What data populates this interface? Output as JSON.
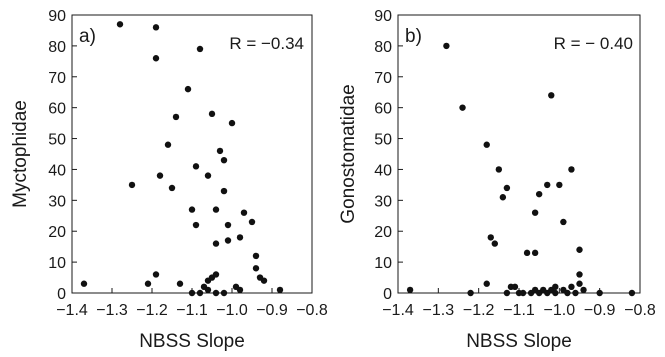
{
  "chart_data": [
    {
      "type": "scatter",
      "panel_label": "a)",
      "annotation": "R = −0.34",
      "xlabel": "NBSS Slope",
      "ylabel": "Myctophidae",
      "xlim": [
        -1.4,
        -0.8
      ],
      "ylim": [
        0,
        90
      ],
      "xticks": [
        -1.4,
        -1.3,
        -1.2,
        -1.1,
        -1.0,
        -0.9,
        -0.8
      ],
      "yticks": [
        0,
        10,
        20,
        30,
        40,
        50,
        60,
        70,
        80,
        90
      ],
      "xtick_labels": [
        "−1.4",
        "−1.3",
        "−1.2",
        "−1.1",
        "−1.0",
        "−0.9",
        "−0.8"
      ],
      "ytick_labels": [
        "0",
        "10",
        "20",
        "30",
        "40",
        "50",
        "60",
        "70",
        "80",
        "90"
      ],
      "grid": false,
      "points": [
        {
          "x": -1.37,
          "y": 3
        },
        {
          "x": -1.28,
          "y": 87
        },
        {
          "x": -1.25,
          "y": 35
        },
        {
          "x": -1.21,
          "y": 3
        },
        {
          "x": -1.19,
          "y": 86
        },
        {
          "x": -1.19,
          "y": 76
        },
        {
          "x": -1.19,
          "y": 6
        },
        {
          "x": -1.18,
          "y": 38
        },
        {
          "x": -1.16,
          "y": 48
        },
        {
          "x": -1.15,
          "y": 34
        },
        {
          "x": -1.14,
          "y": 57
        },
        {
          "x": -1.13,
          "y": 3
        },
        {
          "x": -1.11,
          "y": 66
        },
        {
          "x": -1.1,
          "y": 27
        },
        {
          "x": -1.09,
          "y": 41
        },
        {
          "x": -1.08,
          "y": 79
        },
        {
          "x": -1.09,
          "y": 22
        },
        {
          "x": -1.07,
          "y": 2
        },
        {
          "x": -1.06,
          "y": 38
        },
        {
          "x": -1.05,
          "y": 58
        },
        {
          "x": -1.04,
          "y": 27
        },
        {
          "x": -1.04,
          "y": 16
        },
        {
          "x": -1.03,
          "y": 46
        },
        {
          "x": -1.02,
          "y": 33
        },
        {
          "x": -1.02,
          "y": 43
        },
        {
          "x": -1.01,
          "y": 17
        },
        {
          "x": -1.01,
          "y": 22
        },
        {
          "x": -1.0,
          "y": 55
        },
        {
          "x": -0.98,
          "y": 18
        },
        {
          "x": -0.97,
          "y": 26
        },
        {
          "x": -0.95,
          "y": 23
        },
        {
          "x": -0.94,
          "y": 12
        },
        {
          "x": -0.94,
          "y": 8
        },
        {
          "x": -0.93,
          "y": 5
        },
        {
          "x": -0.92,
          "y": 4
        },
        {
          "x": -0.88,
          "y": 1
        },
        {
          "x": -1.06,
          "y": 4
        },
        {
          "x": -1.05,
          "y": 5
        },
        {
          "x": -1.04,
          "y": 6
        },
        {
          "x": -1.06,
          "y": 1
        },
        {
          "x": -1.04,
          "y": 0
        },
        {
          "x": -1.02,
          "y": 0
        },
        {
          "x": -0.99,
          "y": 2
        },
        {
          "x": -0.98,
          "y": 1
        },
        {
          "x": -1.08,
          "y": 0
        },
        {
          "x": -1.1,
          "y": 0
        }
      ]
    },
    {
      "type": "scatter",
      "panel_label": "b)",
      "annotation": "R = − 0.40",
      "xlabel": "NBSS Slope",
      "ylabel": "Gonostomatidae",
      "xlim": [
        -1.4,
        -0.8
      ],
      "ylim": [
        0,
        90
      ],
      "xticks": [
        -1.4,
        -1.3,
        -1.2,
        -1.1,
        -1.0,
        -0.9,
        -0.8
      ],
      "yticks": [
        0,
        10,
        20,
        30,
        40,
        50,
        60,
        70,
        80,
        90
      ],
      "xtick_labels": [
        "−1.4",
        "−1.3",
        "−1.2",
        "−1.1",
        "−1.0",
        "−0.9",
        "−0.8"
      ],
      "ytick_labels": [
        "0",
        "10",
        "20",
        "30",
        "40",
        "50",
        "60",
        "70",
        "80",
        "90"
      ],
      "grid": false,
      "points": [
        {
          "x": -1.37,
          "y": 1
        },
        {
          "x": -1.28,
          "y": 80
        },
        {
          "x": -1.24,
          "y": 60
        },
        {
          "x": -1.22,
          "y": 0
        },
        {
          "x": -1.18,
          "y": 48
        },
        {
          "x": -1.18,
          "y": 3
        },
        {
          "x": -1.17,
          "y": 18
        },
        {
          "x": -1.16,
          "y": 16
        },
        {
          "x": -1.15,
          "y": 40
        },
        {
          "x": -1.14,
          "y": 31
        },
        {
          "x": -1.13,
          "y": 34
        },
        {
          "x": -1.13,
          "y": 0
        },
        {
          "x": -1.12,
          "y": 2
        },
        {
          "x": -1.11,
          "y": 2
        },
        {
          "x": -1.1,
          "y": 0
        },
        {
          "x": -1.08,
          "y": 13
        },
        {
          "x": -1.06,
          "y": 13
        },
        {
          "x": -1.06,
          "y": 26
        },
        {
          "x": -1.05,
          "y": 32
        },
        {
          "x": -1.03,
          "y": 35
        },
        {
          "x": -1.02,
          "y": 64
        },
        {
          "x": -1.0,
          "y": 35
        },
        {
          "x": -0.99,
          "y": 23
        },
        {
          "x": -0.97,
          "y": 40
        },
        {
          "x": -0.95,
          "y": 14
        },
        {
          "x": -0.95,
          "y": 6
        },
        {
          "x": -0.95,
          "y": 3
        },
        {
          "x": -0.94,
          "y": 1
        },
        {
          "x": -0.9,
          "y": 0
        },
        {
          "x": -0.82,
          "y": 0
        },
        {
          "x": -1.07,
          "y": 0
        },
        {
          "x": -1.06,
          "y": 1
        },
        {
          "x": -1.05,
          "y": 0
        },
        {
          "x": -1.04,
          "y": 1
        },
        {
          "x": -1.03,
          "y": 0
        },
        {
          "x": -1.02,
          "y": 1
        },
        {
          "x": -1.01,
          "y": 0
        },
        {
          "x": -1.01,
          "y": 2
        },
        {
          "x": -0.99,
          "y": 1
        },
        {
          "x": -0.98,
          "y": 0
        },
        {
          "x": -0.97,
          "y": 2
        },
        {
          "x": -0.96,
          "y": 0
        },
        {
          "x": -1.09,
          "y": 0
        }
      ]
    }
  ]
}
